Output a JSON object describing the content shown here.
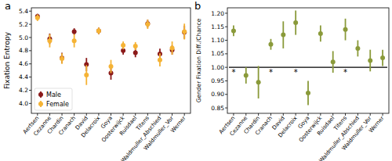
{
  "chart_data": [
    {
      "type": "scatter",
      "title": "a",
      "y_label": "Fixation Entropy",
      "categories": [
        "Aertsen",
        "Cezanne",
        "Chardin",
        "Cranach",
        "David",
        "Delacroix",
        "Goya",
        "Oosterwijck",
        "Ruisdael",
        "Titens",
        "Waldmuller_Abschied",
        "Waldmuller_Vor",
        "Werner"
      ],
      "series": [
        {
          "name": "Male",
          "color": "#8b1a1a",
          "marker": "circle",
          "values": [
            5.32,
            4.98,
            4.69,
            5.09,
            4.59,
            5.1,
            4.46,
            4.8,
            4.77,
            5.21,
            4.75,
            4.81,
            5.08
          ],
          "errors": [
            0.04,
            0.08,
            0.08,
            0.05,
            0.1,
            0.05,
            0.1,
            0.06,
            0.07,
            0.06,
            0.08,
            0.07,
            0.1
          ]
        },
        {
          "name": "Female",
          "color": "#f5b335",
          "marker": "circle",
          "values": [
            5.3,
            4.95,
            4.68,
            4.95,
            4.43,
            5.1,
            4.56,
            4.88,
            4.87,
            5.2,
            4.66,
            4.84,
            5.09
          ],
          "errors": [
            0.05,
            0.1,
            0.08,
            0.1,
            0.15,
            0.05,
            0.1,
            0.06,
            0.06,
            0.07,
            0.1,
            0.1,
            0.12
          ]
        }
      ],
      "ylim": [
        3.85,
        5.45
      ],
      "yticks": [
        {
          "value": 4,
          "label": "4.0"
        },
        4.2,
        4.4,
        4.6,
        4.8,
        {
          "value": 5,
          "label": "5.0"
        },
        5.2,
        5.4
      ],
      "legend": "lower left",
      "grid": false
    },
    {
      "type": "scatter",
      "title": "b",
      "y_label": "Gender Fixation Diff./Chance",
      "categories": [
        "Aertsen",
        "Cezanne",
        "Chardin",
        "Cranach",
        "David",
        "Delacroix",
        "Goya",
        "Oosterwijck",
        "Ruisdael",
        "Titens",
        "Waldmuller_Abschied",
        "Waldmuller_Vor",
        "Werner"
      ],
      "series": [
        {
          "color": "#8a9a3a",
          "marker": "circle",
          "values": [
            1.135,
            0.97,
            0.945,
            1.085,
            1.12,
            1.165,
            0.905,
            1.125,
            1.02,
            1.14,
            1.07,
            1.025,
            1.035
          ],
          "errors": [
            0.02,
            0.03,
            0.06,
            0.02,
            0.05,
            0.045,
            0.045,
            0.03,
            0.04,
            0.04,
            0.03,
            0.04,
            0.03
          ]
        }
      ],
      "reference_line": 1,
      "annotations": [
        {
          "text": "*",
          "x": "Aertsen",
          "y": 0.99
        },
        {
          "text": "*",
          "x": "Cranach",
          "y": 0.99
        },
        {
          "text": "*",
          "x": "Delacroix",
          "y": 0.99
        },
        {
          "text": "*",
          "x": "Titens",
          "y": 0.99
        }
      ],
      "ylim": [
        0.83,
        1.22
      ],
      "yticks": [
        0.85,
        {
          "value": 0.9,
          "label": "0.90"
        },
        0.95,
        {
          "value": 1,
          "label": "1.00"
        },
        1.05,
        {
          "value": 1.1,
          "label": "1.10"
        },
        1.15,
        {
          "value": 1.2,
          "label": "1.20"
        }
      ],
      "grid": false
    }
  ]
}
